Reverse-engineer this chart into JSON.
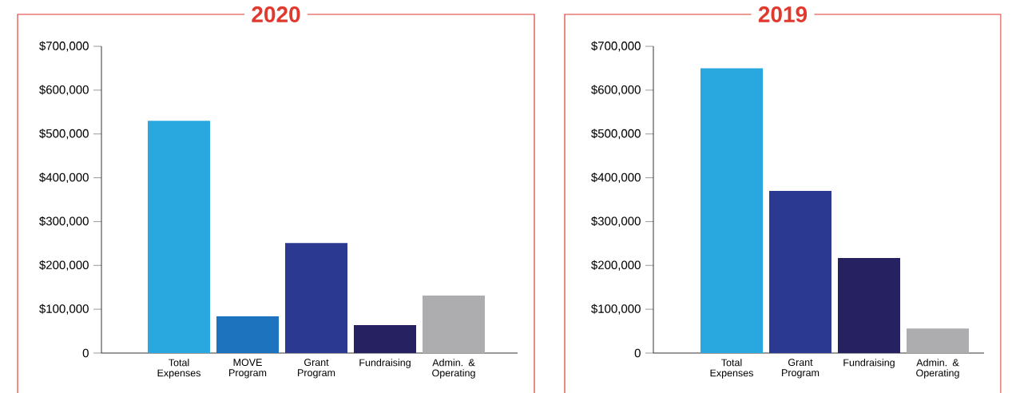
{
  "chart_data": [
    {
      "type": "bar",
      "title": "2020",
      "categories": [
        "Total Expenses",
        "MOVE Program",
        "Grant Program",
        "Fundraising",
        "Admin. & Operating"
      ],
      "values": [
        530000,
        84000,
        251000,
        64000,
        131000
      ],
      "colors": [
        "#29a8e0",
        "#1e73be",
        "#2b3990",
        "#262262",
        "#adadb0"
      ],
      "ylim": [
        0,
        700000
      ],
      "yticks": [
        0,
        {
          "value": 100000,
          "label": "$100,000"
        },
        {
          "value": 200000,
          "label": "$200,000"
        },
        {
          "value": 300000,
          "label": "$300,000"
        },
        {
          "value": 400000,
          "label": "$400,000"
        },
        {
          "value": 500000,
          "label": "$500,000"
        },
        {
          "value": 600000,
          "label": "$600,000"
        },
        {
          "value": 700000,
          "label": "$700,000"
        }
      ]
    },
    {
      "type": "bar",
      "title": "2019",
      "categories": [
        "Total Expenses",
        "Grant Program",
        "Fundraising",
        "Admin. & Operating"
      ],
      "values": [
        650000,
        370000,
        217000,
        56000
      ],
      "colors": [
        "#29a8e0",
        "#2b3990",
        "#262262",
        "#adadb0"
      ],
      "ylim": [
        0,
        700000
      ],
      "yticks": [
        0,
        {
          "value": 100000,
          "label": "$100,000"
        },
        {
          "value": 200000,
          "label": "$200,000"
        },
        {
          "value": 300000,
          "label": "$300,000"
        },
        {
          "value": 400000,
          "label": "$400,000"
        },
        {
          "value": 500000,
          "label": "$500,000"
        },
        {
          "value": 600000,
          "label": "$600,000"
        },
        {
          "value": 700000,
          "label": "$700,000"
        }
      ]
    }
  ]
}
